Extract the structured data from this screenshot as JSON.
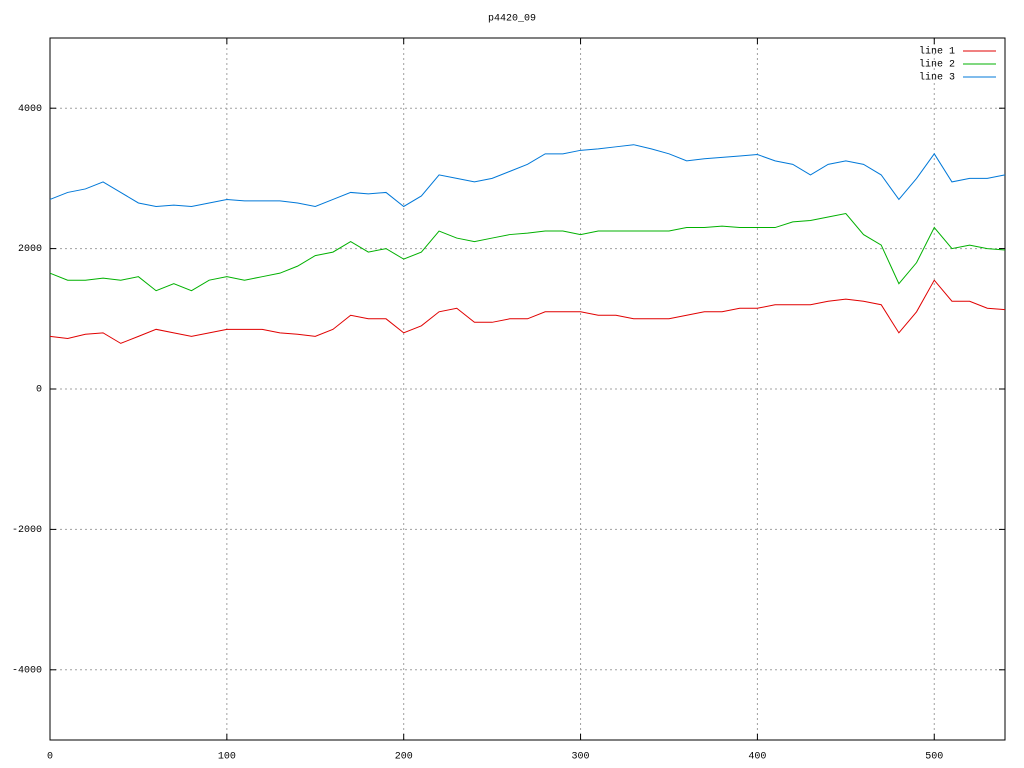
{
  "chart_data": {
    "type": "line",
    "title": "p4420_09",
    "x": [
      0,
      10,
      20,
      30,
      40,
      50,
      60,
      70,
      80,
      90,
      100,
      110,
      120,
      130,
      140,
      150,
      160,
      170,
      180,
      190,
      200,
      210,
      220,
      230,
      240,
      250,
      260,
      270,
      280,
      290,
      300,
      310,
      320,
      330,
      340,
      350,
      360,
      370,
      380,
      390,
      400,
      410,
      420,
      430,
      440,
      450,
      460,
      470,
      480,
      490,
      500,
      510,
      520,
      530,
      540
    ],
    "series": [
      {
        "name": "line 1",
        "color": "#e00000",
        "values": [
          750,
          720,
          780,
          800,
          650,
          750,
          850,
          800,
          750,
          800,
          850,
          850,
          850,
          800,
          780,
          750,
          850,
          1050,
          1000,
          1000,
          800,
          900,
          1100,
          1150,
          950,
          950,
          1000,
          1000,
          1100,
          1100,
          1100,
          1050,
          1050,
          1000,
          1000,
          1000,
          1050,
          1100,
          1100,
          1150,
          1150,
          1200,
          1200,
          1200,
          1250,
          1280,
          1250,
          1200,
          800,
          1100,
          1550,
          1250,
          1250,
          1150,
          1130
        ]
      },
      {
        "name": "line 2",
        "color": "#00b000",
        "values": [
          1650,
          1550,
          1550,
          1580,
          1550,
          1600,
          1400,
          1500,
          1400,
          1550,
          1600,
          1550,
          1600,
          1650,
          1750,
          1900,
          1950,
          2100,
          1950,
          2000,
          1850,
          1950,
          2250,
          2150,
          2100,
          2150,
          2200,
          2220,
          2250,
          2250,
          2200,
          2250,
          2250,
          2250,
          2250,
          2250,
          2300,
          2300,
          2320,
          2300,
          2300,
          2300,
          2380,
          2400,
          2450,
          2500,
          2200,
          2050,
          1500,
          1800,
          2300,
          2000,
          2050,
          2000,
          1980
        ]
      },
      {
        "name": "line 3",
        "color": "#0078d8",
        "values": [
          2700,
          2800,
          2850,
          2950,
          2800,
          2650,
          2600,
          2620,
          2600,
          2650,
          2700,
          2680,
          2680,
          2680,
          2650,
          2600,
          2700,
          2800,
          2780,
          2800,
          2600,
          2750,
          3050,
          3000,
          2950,
          3000,
          3100,
          3200,
          3350,
          3350,
          3400,
          3420,
          3450,
          3480,
          3420,
          3350,
          3250,
          3280,
          3300,
          3320,
          3340,
          3250,
          3200,
          3050,
          3200,
          3250,
          3200,
          3050,
          2700,
          3000,
          3350,
          2950,
          3000,
          3000,
          3050
        ]
      }
    ],
    "xlim": [
      0,
      540
    ],
    "ylim": [
      -5000,
      5000
    ],
    "xticks": [
      0,
      100,
      200,
      300,
      400,
      500
    ],
    "yticks": [
      -4000,
      -2000,
      0,
      2000,
      4000
    ],
    "grid": true,
    "legend": "top-right"
  }
}
